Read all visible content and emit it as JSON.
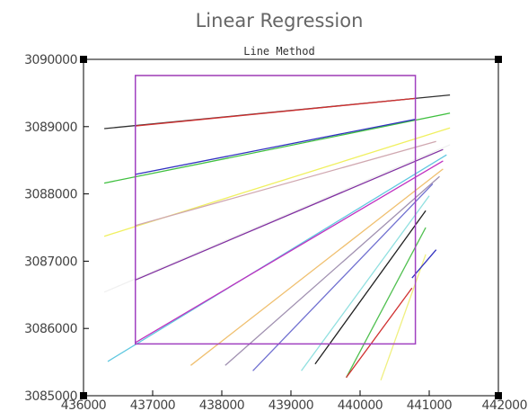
{
  "chart_data": {
    "type": "line",
    "title": "Linear Regression",
    "subtitle": "Line Method",
    "xlabel": "",
    "ylabel": "",
    "xlim": [
      436000,
      442000
    ],
    "ylim": [
      3085000,
      3090000
    ],
    "x_ticks": [
      436000,
      437000,
      438000,
      439000,
      440000,
      441000,
      442000
    ],
    "x_tick_labels": [
      "436000",
      "437000",
      "438000",
      "439000",
      "440000",
      "441000",
      "442000"
    ],
    "y_ticks": [
      3085000,
      3086000,
      3087000,
      3088000,
      3089000,
      3090000
    ],
    "y_tick_labels": [
      "3085000",
      "3086000",
      "3087000",
      "3088000",
      "3089000",
      "3090000"
    ],
    "grid": false,
    "rectangles": [
      {
        "x": [
          436750,
          440800
        ],
        "y": [
          3085770,
          3089760
        ],
        "color": "#a040c0"
      }
    ],
    "series": [
      {
        "x": [
          436750,
          440800
        ],
        "y": [
          3089760,
          3089760
        ],
        "color": "#e8b870"
      },
      {
        "x": [
          436300,
          441300
        ],
        "y": [
          3088970,
          3089470
        ],
        "color": "#303030"
      },
      {
        "x": [
          436750,
          440800
        ],
        "y": [
          3089010,
          3089420
        ],
        "color": "#d03030"
      },
      {
        "x": [
          436300,
          441300
        ],
        "y": [
          3088160,
          3089200
        ],
        "color": "#40c040"
      },
      {
        "x": [
          436750,
          440800
        ],
        "y": [
          3088290,
          3089110
        ],
        "color": "#3030c0"
      },
      {
        "x": [
          436300,
          441300
        ],
        "y": [
          3087370,
          3088980
        ],
        "color": "#f0f060"
      },
      {
        "x": [
          436750,
          441100
        ],
        "y": [
          3087530,
          3088780
        ],
        "color": "#d0a8b0"
      },
      {
        "x": [
          436300,
          441300
        ],
        "y": [
          3086540,
          3088730
        ],
        "color": "#f0f0f0"
      },
      {
        "x": [
          436750,
          441200
        ],
        "y": [
          3086720,
          3088660
        ],
        "color": "#8030a0"
      },
      {
        "x": [
          436350,
          441250
        ],
        "y": [
          3085510,
          3088580
        ],
        "color": "#60c8e0"
      },
      {
        "x": [
          436750,
          441200
        ],
        "y": [
          3085790,
          3088490
        ],
        "color": "#c030c0"
      },
      {
        "x": [
          437550,
          441200
        ],
        "y": [
          3085450,
          3088370
        ],
        "color": "#f0c070"
      },
      {
        "x": [
          438050,
          441150
        ],
        "y": [
          3085450,
          3088260
        ],
        "color": "#a090b0"
      },
      {
        "x": [
          438450,
          441050
        ],
        "y": [
          3085370,
          3088150
        ],
        "color": "#7070d0"
      },
      {
        "x": [
          439150,
          441000
        ],
        "y": [
          3085370,
          3087970
        ],
        "color": "#90e0e0"
      },
      {
        "x": [
          439350,
          440950
        ],
        "y": [
          3085470,
          3087750
        ],
        "color": "#202020"
      },
      {
        "x": [
          439800,
          440950
        ],
        "y": [
          3085270,
          3087500
        ],
        "color": "#50c050"
      },
      {
        "x": [
          439800,
          440750
        ],
        "y": [
          3085270,
          3086600
        ],
        "color": "#d03030"
      },
      {
        "x": [
          440300,
          440950
        ],
        "y": [
          3085230,
          3087100
        ],
        "color": "#f0f080"
      },
      {
        "x": [
          440750,
          441100
        ],
        "y": [
          3086750,
          3087170
        ],
        "color": "#3030c0"
      }
    ]
  }
}
